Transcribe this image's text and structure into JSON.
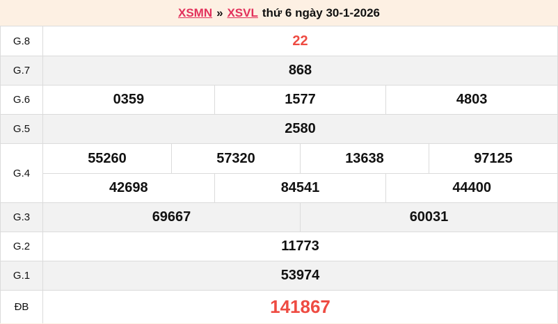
{
  "header": {
    "link_xsmn": "XSMN",
    "separator": "»",
    "link_xsvl": "XSVL",
    "suffix": "thứ 6 ngày 30-1-2026"
  },
  "colors": {
    "page_bg": "#fdf0e3",
    "link_red": "#e2315b",
    "value_red": "#ee4b42",
    "row_alt_bg": "#f2f2f2",
    "border": "#dbdbdb",
    "text": "#111111"
  },
  "table": {
    "rows": [
      {
        "label": "G.8",
        "values": [
          "22"
        ],
        "highlight": true
      },
      {
        "label": "G.7",
        "values": [
          "868"
        ],
        "highlight": false
      },
      {
        "label": "G.6",
        "values": [
          "0359",
          "1577",
          "4803"
        ],
        "highlight": false
      },
      {
        "label": "G.5",
        "values": [
          "2580"
        ],
        "highlight": false
      },
      {
        "label": "G.4",
        "lines": [
          [
            "55260",
            "57320",
            "13638",
            "97125"
          ],
          [
            "42698",
            "84541",
            "44400"
          ]
        ],
        "highlight": false
      },
      {
        "label": "G.3",
        "values": [
          "69667",
          "60031"
        ],
        "highlight": false
      },
      {
        "label": "G.2",
        "values": [
          "11773"
        ],
        "highlight": false
      },
      {
        "label": "G.1",
        "values": [
          "53974"
        ],
        "highlight": false
      },
      {
        "label": "ĐB",
        "values": [
          "141867"
        ],
        "highlight": true
      }
    ]
  }
}
